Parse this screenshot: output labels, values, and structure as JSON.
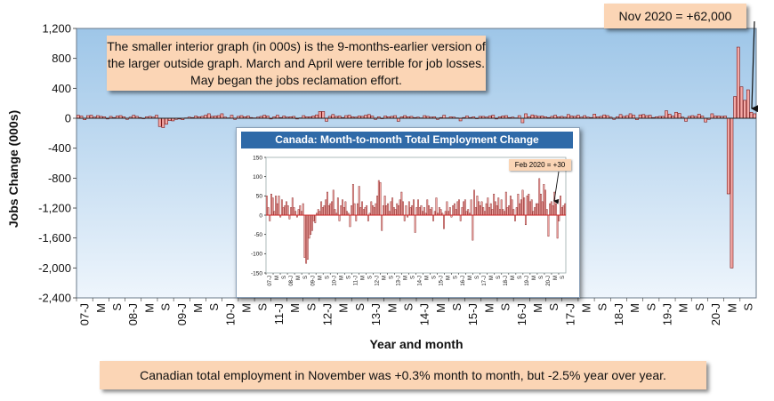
{
  "chart_data": [
    {
      "type": "bar",
      "ylabel": "Jobs Change (000s)",
      "xlabel": "Year and month",
      "ylim": [
        -2400,
        1200
      ],
      "yticks": [
        1200,
        800,
        400,
        0,
        -400,
        -800,
        -1200,
        -1600,
        -2000,
        -2400
      ],
      "ytick_labels": [
        "1,200",
        "800",
        "400",
        "0",
        "-400",
        "-800",
        "-1,200",
        "-1,600",
        "-2,000",
        "-2,400"
      ],
      "x_start": "07-J",
      "x_tick_labels": [
        "07-J",
        "M",
        "S",
        "08-J",
        "M",
        "S",
        "09-J",
        "M",
        "S",
        "10-J",
        "M",
        "S",
        "11-J",
        "M",
        "S",
        "12-J",
        "M",
        "S",
        "13-J",
        "M",
        "S",
        "14-J",
        "M",
        "S",
        "15-J",
        "M",
        "S",
        "16-J",
        "M",
        "S",
        "17-J",
        "M",
        "S",
        "18-J",
        "M",
        "S",
        "19-J",
        "M",
        "S",
        "20-J",
        "M",
        "S"
      ],
      "grid": false,
      "values": [
        40,
        30,
        -20,
        35,
        40,
        15,
        35,
        25,
        20,
        -10,
        25,
        10,
        30,
        35,
        20,
        -15,
        15,
        40,
        25,
        10,
        -5,
        20,
        25,
        15,
        40,
        -110,
        -125,
        -80,
        -30,
        -35,
        -15,
        -10,
        -20,
        5,
        15,
        10,
        30,
        20,
        25,
        40,
        60,
        25,
        30,
        35,
        60,
        15,
        5,
        40,
        -15,
        25,
        35,
        20,
        30,
        10,
        5,
        15,
        25,
        40,
        30,
        -10,
        20,
        40,
        10,
        30,
        15,
        20,
        25,
        -10,
        5,
        35,
        20,
        20,
        30,
        45,
        90,
        90,
        -40,
        25,
        50,
        25,
        30,
        10,
        35,
        40,
        20,
        15,
        30,
        25,
        40,
        50,
        30,
        -15,
        20,
        -5,
        30,
        20,
        25,
        35,
        -40,
        20,
        35,
        20,
        25,
        10,
        15,
        5,
        35,
        25,
        15,
        20,
        -15,
        10,
        40,
        5,
        20,
        15,
        5,
        -35,
        10,
        30,
        10,
        20,
        -5,
        25,
        25,
        15,
        30,
        40,
        -10,
        20,
        30,
        35,
        10,
        15,
        5,
        35,
        -60,
        60,
        20,
        45,
        35,
        25,
        30,
        20,
        10,
        25,
        40,
        20,
        25,
        15,
        50,
        30,
        25,
        40,
        15,
        35,
        15,
        10,
        55,
        20,
        25,
        45,
        35,
        15,
        -15,
        20,
        50,
        25,
        35,
        60,
        40,
        -20,
        45,
        50,
        35,
        40,
        10,
        20,
        25,
        25,
        100,
        55,
        30,
        80,
        65,
        15,
        -40,
        25,
        35,
        25,
        55,
        30,
        -50,
        -15,
        60,
        30,
        30,
        25,
        30,
        -1010,
        -2000,
        290,
        950,
        420,
        240,
        380,
        80,
        60
      ],
      "annotations": [
        "Nov 2020 = +62,000",
        "The smaller interior graph (in 000s) is the 9-months-earlier version of the larger outside graph. March and April were terrible for job losses. May began the jobs reclamation effort.",
        "Canadian total employment in November was +0.3% month to month, but -2.5% year over year."
      ]
    },
    {
      "type": "bar",
      "title": "Canada: Month-to-month Total Employment Change",
      "ylim": [
        -150,
        150
      ],
      "yticks": [
        150,
        100,
        50,
        0,
        -50,
        -100,
        -150
      ],
      "x_tick_labels": [
        "07-J",
        "M",
        "S",
        "08-J",
        "M",
        "S",
        "09-J",
        "M",
        "S",
        "10-J",
        "M",
        "S",
        "11-J",
        "M",
        "S",
        "12-J",
        "M",
        "S",
        "13-J",
        "M",
        "S",
        "14-J",
        "M",
        "S",
        "15-J",
        "M",
        "S",
        "16-J",
        "M",
        "S",
        "17-J",
        "M",
        "S",
        "18-J",
        "M",
        "S",
        "19-J",
        "M",
        "S",
        "20-J",
        "M",
        "S"
      ],
      "values": [
        50,
        20,
        -15,
        55,
        45,
        10,
        50,
        30,
        50,
        -5,
        40,
        20,
        25,
        35,
        25,
        -10,
        20,
        45,
        20,
        10,
        -5,
        15,
        25,
        10,
        30,
        -110,
        -125,
        -115,
        -60,
        -50,
        -40,
        -15,
        -20,
        5,
        15,
        10,
        35,
        20,
        25,
        40,
        60,
        25,
        30,
        35,
        65,
        15,
        5,
        45,
        -15,
        25,
        40,
        20,
        35,
        10,
        5,
        -30,
        25,
        80,
        30,
        -15,
        30,
        75,
        20,
        35,
        15,
        20,
        25,
        -15,
        5,
        35,
        25,
        20,
        30,
        50,
        90,
        85,
        -40,
        25,
        50,
        25,
        30,
        10,
        35,
        45,
        20,
        15,
        30,
        25,
        40,
        60,
        35,
        -15,
        25,
        -5,
        35,
        20,
        25,
        40,
        -45,
        20,
        40,
        20,
        25,
        10,
        20,
        5,
        40,
        25,
        15,
        20,
        -15,
        10,
        45,
        5,
        20,
        15,
        5,
        -35,
        10,
        35,
        10,
        20,
        -5,
        25,
        30,
        15,
        35,
        40,
        -15,
        20,
        35,
        40,
        10,
        15,
        5,
        40,
        -65,
        65,
        20,
        50,
        35,
        25,
        35,
        20,
        10,
        30,
        45,
        20,
        30,
        15,
        55,
        35,
        25,
        45,
        15,
        40,
        15,
        10,
        60,
        20,
        25,
        50,
        40,
        15,
        -15,
        20,
        55,
        30,
        40,
        65,
        45,
        -25,
        50,
        55,
        35,
        40,
        10,
        20,
        30,
        30,
        95,
        55,
        35,
        80,
        65,
        15,
        -55,
        30,
        35,
        25,
        60,
        30,
        -60,
        -15,
        50,
        20,
        25,
        30
      ],
      "annotations": [
        "Feb 2020 =  +30"
      ]
    }
  ],
  "colors": {
    "bar_fill": "#f4a9a6",
    "bar_stroke": "#7b1616",
    "plot_bg_top": "#9ec6e8",
    "plot_bg_bottom": "#eef5fc",
    "inset_title_bg": "#2f6aa8",
    "callout_bg": "#fbd5b5"
  }
}
